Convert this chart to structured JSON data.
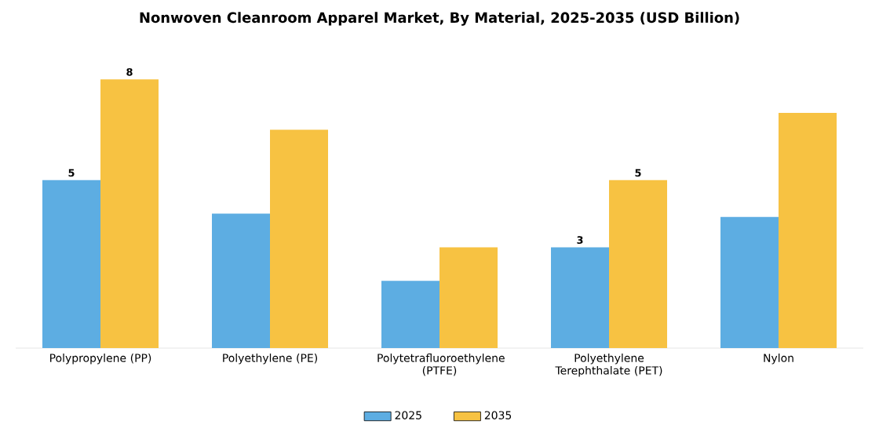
{
  "chart_data": {
    "type": "bar",
    "title": "Nonwoven Cleanroom Apparel Market, By Material, 2025-2035 (USD Billion)",
    "categories": [
      "Polypropylene (PP)",
      "Polyethylene (PE)",
      "Polytetrafluoroethylene (PTFE)",
      "Polyethylene Terephthalate (PET)",
      "Nylon"
    ],
    "series": [
      {
        "name": "2025",
        "color": "#5dade2",
        "values": [
          5,
          4.0,
          2.0,
          3,
          3.9
        ],
        "value_labels": [
          "5",
          null,
          null,
          "3",
          null
        ]
      },
      {
        "name": "2035",
        "color": "#f7c242",
        "values": [
          8,
          6.5,
          3.0,
          5,
          7.0
        ],
        "value_labels": [
          "8",
          null,
          null,
          "5",
          null
        ]
      }
    ],
    "legend": "bottom"
  }
}
